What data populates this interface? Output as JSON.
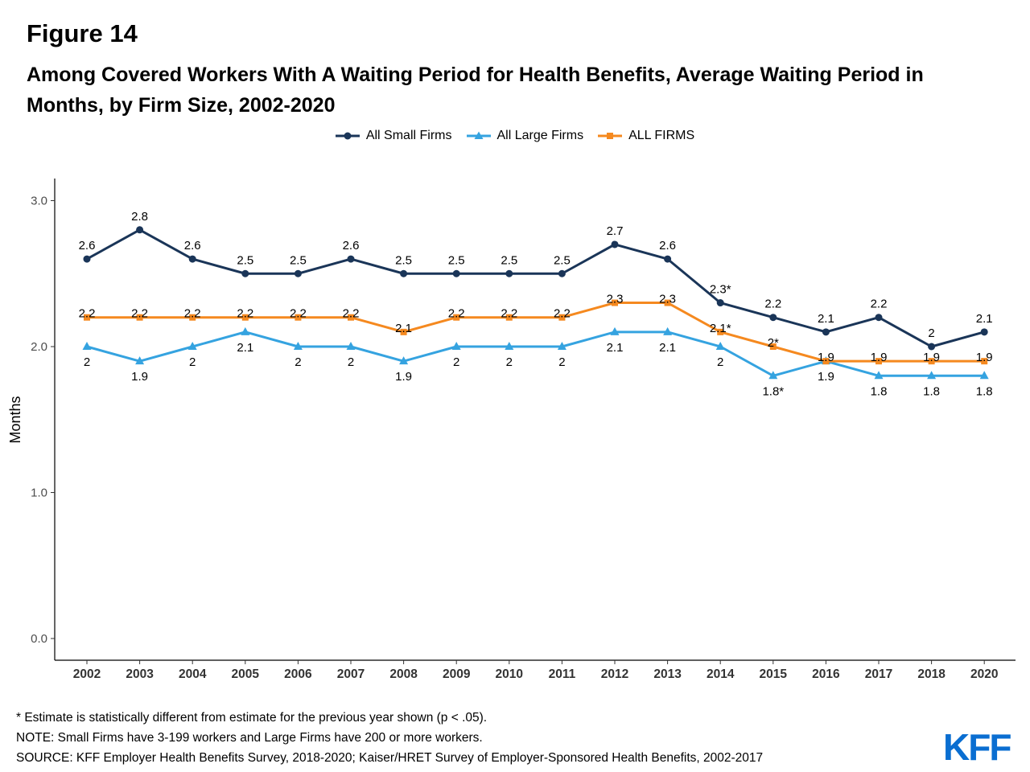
{
  "figure_label": "Figure 14",
  "title": "Among Covered Workers With A Waiting Period for Health Benefits, Average Waiting Period in Months, by Firm Size, 2002-2020",
  "legend": [
    {
      "label": "All Small Firms",
      "color": "#1a3558",
      "marker": "circle"
    },
    {
      "label": "All Large Firms",
      "color": "#35a3e0",
      "marker": "triangle"
    },
    {
      "label": "ALL FIRMS",
      "color": "#f5891f",
      "marker": "square"
    }
  ],
  "footnotes": {
    "asterisk": "* Estimate is statistically different from estimate for the previous year shown (p < .05).",
    "note": "NOTE: Small Firms have 3-199 workers and Large Firms have 200 or more workers.",
    "source": "SOURCE: KFF Employer Health Benefits Survey, 2018-2020; Kaiser/HRET Survey of Employer-Sponsored Health Benefits, 2002-2017"
  },
  "logo": "KFF",
  "chart_data": {
    "type": "line",
    "x": [
      "2002",
      "2003",
      "2004",
      "2005",
      "2006",
      "2007",
      "2008",
      "2009",
      "2010",
      "2011",
      "2012",
      "2013",
      "2014",
      "2015",
      "2016",
      "2017",
      "2018",
      "2020"
    ],
    "ylabel": "Months",
    "ylim": [
      0,
      3.1
    ],
    "yticks": [
      "0.0",
      "1.0",
      "2.0",
      "3.0"
    ],
    "grid": false,
    "legend_position": "top",
    "series": [
      {
        "name": "All Small Firms",
        "color": "#1a3558",
        "marker": "circle",
        "label_side": "above",
        "values": [
          2.6,
          2.8,
          2.6,
          2.5,
          2.5,
          2.6,
          2.5,
          2.5,
          2.5,
          2.5,
          2.7,
          2.6,
          2.3,
          2.2,
          2.1,
          2.2,
          2.0,
          2.1
        ],
        "labels": [
          "2.6",
          "2.8",
          "2.6",
          "2.5",
          "2.5",
          "2.6",
          "2.5",
          "2.5",
          "2.5",
          "2.5",
          "2.7",
          "2.6",
          "2.3*",
          "2.2",
          "2.1",
          "2.2",
          "2",
          "2.1"
        ]
      },
      {
        "name": "All Large Firms",
        "color": "#35a3e0",
        "marker": "triangle",
        "label_side": "below",
        "values": [
          2.0,
          1.9,
          2.0,
          2.1,
          2.0,
          2.0,
          1.9,
          2.0,
          2.0,
          2.0,
          2.1,
          2.1,
          2.0,
          1.8,
          1.9,
          1.8,
          1.8,
          1.8
        ],
        "labels": [
          "2",
          "1.9",
          "2",
          "2.1",
          "2",
          "2",
          "1.9",
          "2",
          "2",
          "2",
          "2.1",
          "2.1",
          "2",
          "1.8*",
          "1.9",
          "1.8",
          "1.8",
          "1.8"
        ]
      },
      {
        "name": "ALL FIRMS",
        "color": "#f5891f",
        "marker": "square",
        "label_side": "center",
        "values": [
          2.2,
          2.2,
          2.2,
          2.2,
          2.2,
          2.2,
          2.1,
          2.2,
          2.2,
          2.2,
          2.3,
          2.3,
          2.1,
          2.0,
          1.9,
          1.9,
          1.9,
          1.9
        ],
        "labels": [
          "2.2",
          "2.2",
          "2.2",
          "2.2",
          "2.2",
          "2.2",
          "2.1",
          "2.2",
          "2.2",
          "2.2",
          "2.3",
          "2.3",
          "2.1*",
          "2*",
          "1.9",
          "1.9",
          "1.9",
          "1.9"
        ]
      }
    ]
  }
}
